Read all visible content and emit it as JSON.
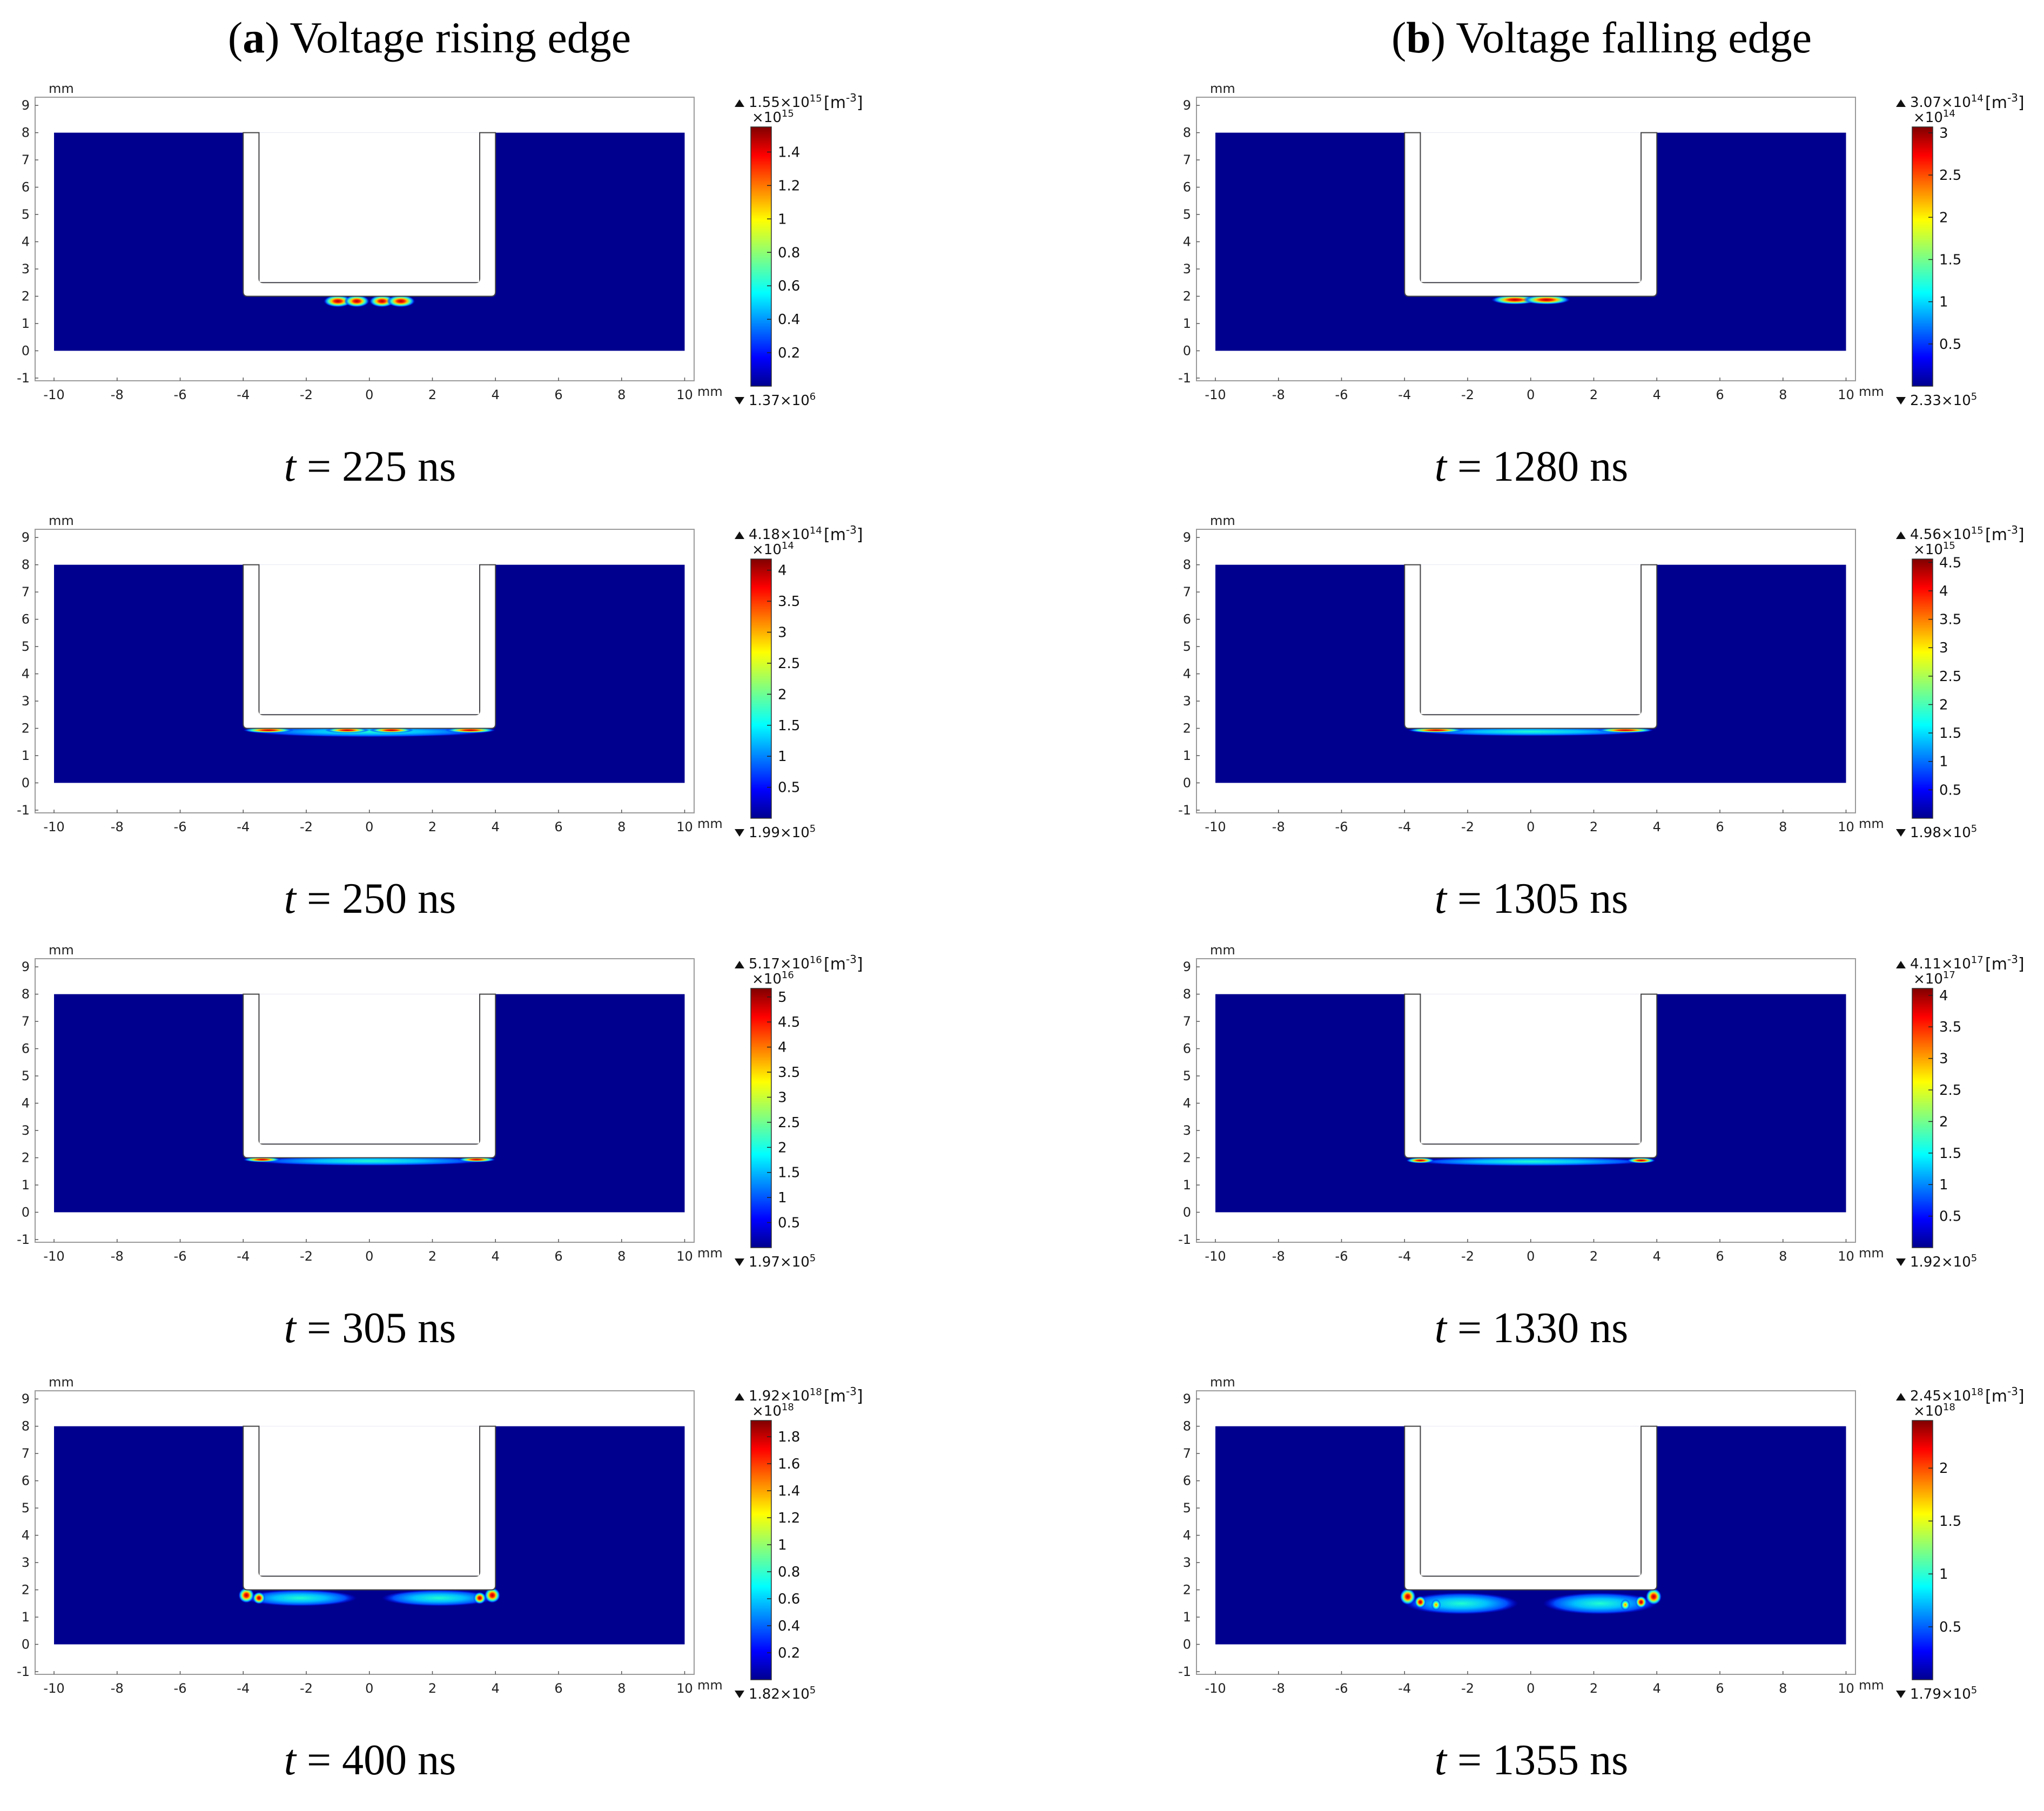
{
  "columns": [
    {
      "letter": "a",
      "title": "Voltage rising edge"
    },
    {
      "letter": "b",
      "title": "Voltage falling edge"
    }
  ],
  "common": {
    "axis_unit": "mm",
    "x_ticks": [
      -10,
      -8,
      -6,
      -4,
      -2,
      0,
      2,
      4,
      6,
      8,
      10
    ],
    "y_ticks": [
      -1,
      0,
      1,
      2,
      3,
      4,
      5,
      6,
      7,
      8,
      9
    ],
    "xlim": [
      -10.6,
      10.3
    ],
    "ylim": [
      -1.1,
      9.3
    ],
    "density_unit": "[m-3]",
    "background_color": "#00008f",
    "electrode": {
      "outer_half_width": 4.0,
      "inner_half_width": 3.5,
      "top_y": 8.0,
      "bottom_outer_y": 2.0,
      "bottom_inner_y": 2.5
    }
  },
  "chart_data": [
    {
      "type": "heatmap",
      "column": "a",
      "time_prefix": "t",
      "time_value": "= 225 ns",
      "max_label": "1.55×10",
      "max_exp": "15",
      "scale_label": "×10",
      "scale_exp": "15",
      "min_label": "1.37×10",
      "min_exp": "6",
      "colorbar_max": 1.55,
      "colorbar_ticks": [
        "0.2",
        "0.4",
        "0.6",
        "0.8",
        "1",
        "1.2",
        "1.4"
      ],
      "colorbar_tick_values": [
        0.2,
        0.4,
        0.6,
        0.8,
        1,
        1.2,
        1.4
      ],
      "spots": [
        {
          "x": -1.0,
          "y": 1.82,
          "rx": 0.45,
          "ry": 0.22,
          "intensity": 1.0
        },
        {
          "x": -0.4,
          "y": 1.82,
          "rx": 0.4,
          "ry": 0.22,
          "intensity": 0.9
        },
        {
          "x": 0.4,
          "y": 1.82,
          "rx": 0.4,
          "ry": 0.22,
          "intensity": 0.9
        },
        {
          "x": 1.0,
          "y": 1.82,
          "rx": 0.45,
          "ry": 0.22,
          "intensity": 1.0
        }
      ]
    },
    {
      "type": "heatmap",
      "column": "a",
      "time_prefix": "t",
      "time_value": "= 250 ns",
      "max_label": "4.18×10",
      "max_exp": "14",
      "scale_label": "×10",
      "scale_exp": "14",
      "min_label": "1.99×10",
      "min_exp": "5",
      "colorbar_max": 4.18,
      "colorbar_ticks": [
        "0.5",
        "1",
        "1.5",
        "2",
        "2.5",
        "3",
        "3.5",
        "4"
      ],
      "colorbar_tick_values": [
        0.5,
        1,
        1.5,
        2,
        2.5,
        3,
        3.5,
        4
      ],
      "spots": [
        {
          "x": 0.0,
          "y": 1.88,
          "rx": 3.9,
          "ry": 0.2,
          "intensity": 0.45
        },
        {
          "x": -3.2,
          "y": 1.93,
          "rx": 0.8,
          "ry": 0.1,
          "intensity": 0.95
        },
        {
          "x": -0.7,
          "y": 1.93,
          "rx": 0.7,
          "ry": 0.1,
          "intensity": 0.95
        },
        {
          "x": 0.7,
          "y": 1.93,
          "rx": 0.7,
          "ry": 0.1,
          "intensity": 0.95
        },
        {
          "x": 3.2,
          "y": 1.93,
          "rx": 0.8,
          "ry": 0.1,
          "intensity": 0.95
        }
      ]
    },
    {
      "type": "heatmap",
      "column": "a",
      "time_prefix": "t",
      "time_value": "= 305 ns",
      "max_label": "5.17×10",
      "max_exp": "16",
      "scale_label": "×10",
      "scale_exp": "16",
      "min_label": "1.97×10",
      "min_exp": "5",
      "colorbar_max": 5.17,
      "colorbar_ticks": [
        "0.5",
        "1",
        "1.5",
        "2",
        "2.5",
        "3",
        "3.5",
        "4",
        "4.5",
        "5"
      ],
      "colorbar_tick_values": [
        0.5,
        1,
        1.5,
        2,
        2.5,
        3,
        3.5,
        4,
        4.5,
        5
      ],
      "spots": [
        {
          "x": 0.0,
          "y": 1.88,
          "rx": 3.8,
          "ry": 0.17,
          "intensity": 0.4
        },
        {
          "x": -3.4,
          "y": 1.93,
          "rx": 0.6,
          "ry": 0.09,
          "intensity": 1.0
        },
        {
          "x": 3.4,
          "y": 1.93,
          "rx": 0.6,
          "ry": 0.09,
          "intensity": 1.0
        }
      ]
    },
    {
      "type": "heatmap",
      "column": "a",
      "time_prefix": "t",
      "time_value": "= 400 ns",
      "max_label": "1.92×10",
      "max_exp": "18",
      "scale_label": "×10",
      "scale_exp": "18",
      "min_label": "1.82×10",
      "min_exp": "5",
      "colorbar_max": 1.92,
      "colorbar_ticks": [
        "0.2",
        "0.4",
        "0.6",
        "0.8",
        "1",
        "1.2",
        "1.4",
        "1.6",
        "1.8"
      ],
      "colorbar_tick_values": [
        0.2,
        0.4,
        0.6,
        0.8,
        1,
        1.2,
        1.4,
        1.6,
        1.8
      ],
      "spots": [
        {
          "x": -2.2,
          "y": 1.7,
          "rx": 1.8,
          "ry": 0.3,
          "intensity": 0.35
        },
        {
          "x": 2.2,
          "y": 1.7,
          "rx": 1.8,
          "ry": 0.3,
          "intensity": 0.35
        },
        {
          "x": -3.9,
          "y": 1.8,
          "rx": 0.25,
          "ry": 0.28,
          "intensity": 1.0
        },
        {
          "x": -3.5,
          "y": 1.7,
          "rx": 0.2,
          "ry": 0.22,
          "intensity": 0.85
        },
        {
          "x": 3.5,
          "y": 1.7,
          "rx": 0.2,
          "ry": 0.22,
          "intensity": 0.85
        },
        {
          "x": 3.9,
          "y": 1.8,
          "rx": 0.25,
          "ry": 0.28,
          "intensity": 1.0
        }
      ]
    },
    {
      "type": "heatmap",
      "column": "b",
      "time_prefix": "t",
      "time_value": "= 1280 ns",
      "max_label": "3.07×10",
      "max_exp": "14",
      "scale_label": "×10",
      "scale_exp": "14",
      "min_label": "2.33×10",
      "min_exp": "5",
      "colorbar_max": 3.07,
      "colorbar_ticks": [
        "0.5",
        "1",
        "1.5",
        "2",
        "2.5",
        "3"
      ],
      "colorbar_tick_values": [
        0.5,
        1,
        1.5,
        2,
        2.5,
        3
      ],
      "spots": [
        {
          "x": -0.5,
          "y": 1.87,
          "rx": 0.75,
          "ry": 0.17,
          "intensity": 1.0
        },
        {
          "x": 0.5,
          "y": 1.87,
          "rx": 0.75,
          "ry": 0.17,
          "intensity": 1.0
        }
      ]
    },
    {
      "type": "heatmap",
      "column": "b",
      "time_prefix": "t",
      "time_value": "= 1305 ns",
      "max_label": "4.56×10",
      "max_exp": "15",
      "scale_label": "×10",
      "scale_exp": "15",
      "min_label": "1.98×10",
      "min_exp": "5",
      "colorbar_max": 4.56,
      "colorbar_ticks": [
        "0.5",
        "1",
        "1.5",
        "2",
        "2.5",
        "3",
        "3.5",
        "4",
        "4.5"
      ],
      "colorbar_tick_values": [
        0.5,
        1,
        1.5,
        2,
        2.5,
        3,
        3.5,
        4,
        4.5
      ],
      "spots": [
        {
          "x": 0.0,
          "y": 1.88,
          "rx": 3.8,
          "ry": 0.16,
          "intensity": 0.4
        },
        {
          "x": -3.0,
          "y": 1.93,
          "rx": 0.9,
          "ry": 0.09,
          "intensity": 0.9
        },
        {
          "x": 3.0,
          "y": 1.93,
          "rx": 0.9,
          "ry": 0.09,
          "intensity": 0.9
        }
      ]
    },
    {
      "type": "heatmap",
      "column": "b",
      "time_prefix": "t",
      "time_value": "= 1330 ns",
      "max_label": "4.11×10",
      "max_exp": "17",
      "scale_label": "×10",
      "scale_exp": "17",
      "min_label": "1.92×10",
      "min_exp": "5",
      "colorbar_max": 4.11,
      "colorbar_ticks": [
        "0.5",
        "1",
        "1.5",
        "2",
        "2.5",
        "3",
        "3.5",
        "4"
      ],
      "colorbar_tick_values": [
        0.5,
        1,
        1.5,
        2,
        2.5,
        3,
        3.5,
        4
      ],
      "spots": [
        {
          "x": 0.0,
          "y": 1.86,
          "rx": 3.8,
          "ry": 0.16,
          "intensity": 0.35
        },
        {
          "x": -3.5,
          "y": 1.9,
          "rx": 0.45,
          "ry": 0.1,
          "intensity": 0.95
        },
        {
          "x": 3.5,
          "y": 1.9,
          "rx": 0.45,
          "ry": 0.1,
          "intensity": 0.95
        }
      ]
    },
    {
      "type": "heatmap",
      "column": "b",
      "time_prefix": "t",
      "time_value": "= 1355 ns",
      "max_label": "2.45×10",
      "max_exp": "18",
      "scale_label": "×10",
      "scale_exp": "18",
      "min_label": "1.79×10",
      "min_exp": "5",
      "colorbar_max": 2.45,
      "colorbar_ticks": [
        "0.5",
        "1",
        "1.5",
        "2"
      ],
      "colorbar_tick_values": [
        0.5,
        1,
        1.5,
        2
      ],
      "spots": [
        {
          "x": -2.2,
          "y": 1.5,
          "rx": 1.8,
          "ry": 0.4,
          "intensity": 0.38
        },
        {
          "x": 2.2,
          "y": 1.5,
          "rx": 1.8,
          "ry": 0.4,
          "intensity": 0.38
        },
        {
          "x": -3.9,
          "y": 1.75,
          "rx": 0.25,
          "ry": 0.3,
          "intensity": 1.0
        },
        {
          "x": -3.5,
          "y": 1.55,
          "rx": 0.18,
          "ry": 0.22,
          "intensity": 0.8
        },
        {
          "x": -3.0,
          "y": 1.45,
          "rx": 0.15,
          "ry": 0.2,
          "intensity": 0.55
        },
        {
          "x": 3.0,
          "y": 1.45,
          "rx": 0.15,
          "ry": 0.2,
          "intensity": 0.55
        },
        {
          "x": 3.5,
          "y": 1.55,
          "rx": 0.18,
          "ry": 0.22,
          "intensity": 0.8
        },
        {
          "x": 3.9,
          "y": 1.75,
          "rx": 0.25,
          "ry": 0.3,
          "intensity": 1.0
        }
      ]
    }
  ]
}
